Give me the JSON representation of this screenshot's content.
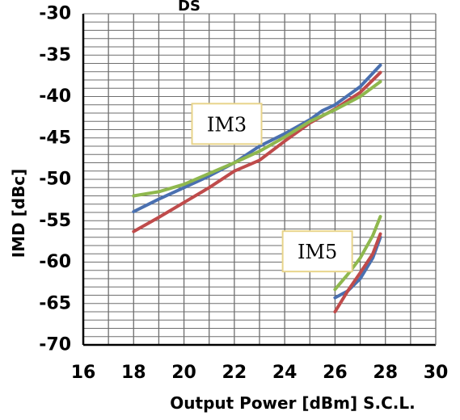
{
  "chart_data": {
    "type": "line",
    "header_fragment": "DS",
    "xlabel": "Output Power [dBm] S.C.L.",
    "ylabel": "IMD [dBc]",
    "xlim": [
      16,
      30
    ],
    "ylim": [
      -70,
      -30
    ],
    "x_ticks": [
      "16",
      "18",
      "20",
      "22",
      "24",
      "26",
      "28",
      "30"
    ],
    "y_ticks": [
      "-30",
      "-35",
      "-40",
      "-45",
      "-50",
      "-55",
      "-60",
      "-65",
      "-70"
    ],
    "grid": true,
    "annotations": [
      {
        "text": "IM3",
        "x": 21.7,
        "y": -43.3
      },
      {
        "text": "IM5",
        "x": 25.3,
        "y": -58.7
      }
    ],
    "series": [
      {
        "color": "#4a70b0",
        "group": "IM3",
        "x": [
          18,
          19,
          20,
          21,
          22,
          23,
          24,
          25,
          25.5,
          26,
          27,
          27.8
        ],
        "y": [
          -53.9,
          -52.4,
          -51.0,
          -49.6,
          -48.0,
          -46.0,
          -44.5,
          -42.8,
          -41.7,
          -41.0,
          -38.8,
          -36.2
        ]
      },
      {
        "color": "#bf4b4b",
        "group": "IM3",
        "x": [
          18,
          19,
          20,
          21,
          22,
          23,
          24,
          25,
          26,
          27,
          27.8
        ],
        "y": [
          -56.3,
          -54.6,
          -52.8,
          -51.0,
          -49.0,
          -47.7,
          -45.4,
          -43.2,
          -41.5,
          -39.5,
          -37.1
        ]
      },
      {
        "color": "#8fb84e",
        "group": "IM3",
        "x": [
          18,
          19,
          20,
          21,
          22,
          23,
          24,
          25,
          26,
          27,
          27.8
        ],
        "y": [
          -52.0,
          -51.5,
          -50.6,
          -49.3,
          -48.0,
          -46.6,
          -44.9,
          -43.0,
          -41.6,
          -40.0,
          -38.2
        ]
      },
      {
        "color": "#4a70b0",
        "group": "IM5",
        "x": [
          26,
          26.5,
          27,
          27.5,
          27.8
        ],
        "y": [
          -64.3,
          -63.5,
          -62.0,
          -59.5,
          -57.0
        ]
      },
      {
        "color": "#bf4b4b",
        "group": "IM5",
        "x": [
          26,
          26.5,
          27,
          27.5,
          27.8
        ],
        "y": [
          -66.0,
          -63.5,
          -61.3,
          -59.0,
          -56.6
        ]
      },
      {
        "color": "#8fb84e",
        "group": "IM5",
        "x": [
          26,
          26.5,
          27,
          27.5,
          27.8
        ],
        "y": [
          -63.3,
          -61.5,
          -59.5,
          -56.8,
          -54.5
        ]
      }
    ],
    "colors": {
      "grid": "#6e6e6e",
      "axis": "#000000",
      "annotation_border": "#e8d48a"
    }
  }
}
